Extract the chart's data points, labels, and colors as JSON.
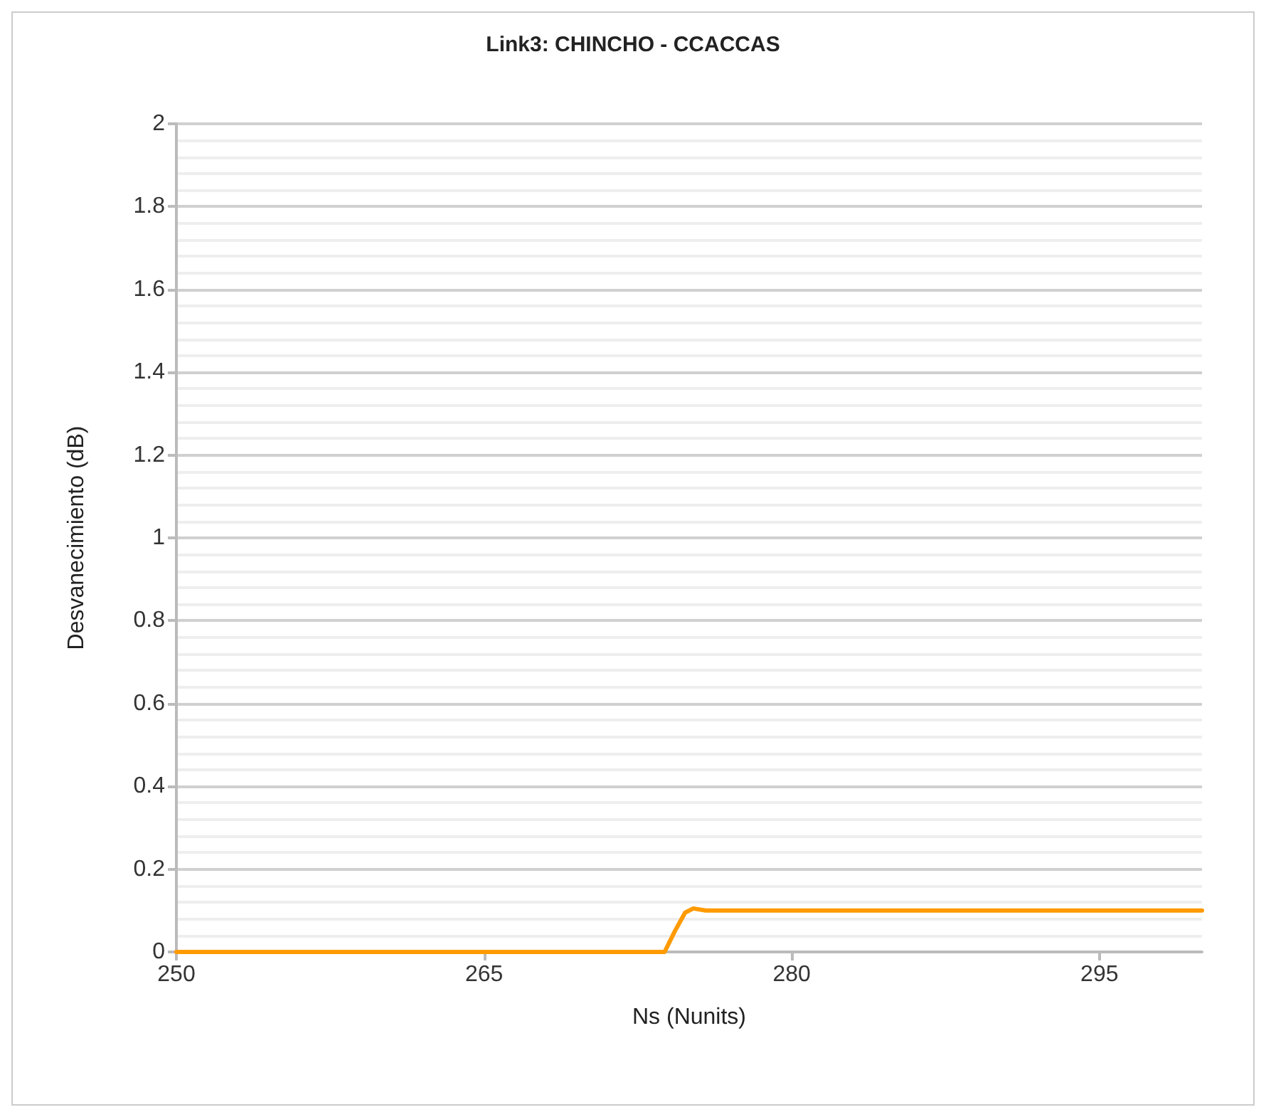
{
  "chart_data": {
    "type": "line",
    "title": "Link3: CHINCHO - CCACCAS",
    "xlabel": "Ns (Nunits)",
    "ylabel": "Desvanecimiento (dB)",
    "series": [
      {
        "color": "#ff9a00",
        "x": [
          250,
          273.4,
          273.8,
          274.3,
          274.8,
          275.2,
          275.8,
          300
        ],
        "values": [
          0,
          0,
          0,
          0.05,
          0.095,
          0.105,
          0.1,
          0.1
        ]
      }
    ],
    "xlim": [
      250,
      300
    ],
    "xticks": [
      250,
      265,
      280,
      295
    ],
    "ylim": [
      0,
      2
    ],
    "yticks": [
      0,
      0.2,
      0.4,
      0.6,
      0.8,
      1,
      1.2,
      1.4,
      1.6,
      1.8,
      2
    ],
    "grid": "y",
    "marker": "none",
    "line_style": "solid"
  }
}
